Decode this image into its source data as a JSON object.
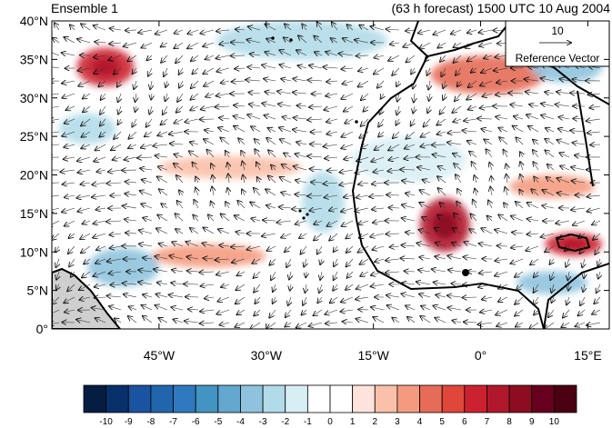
{
  "header": {
    "left_title": "Ensemble 1",
    "right_title": "(63 h forecast) 1500 UTC 10 Aug 2004"
  },
  "map": {
    "lon_range": [
      -60,
      18
    ],
    "lat_range": [
      0,
      40
    ],
    "y_ticks": [
      "0°",
      "5°N",
      "10°N",
      "15°N",
      "20°N",
      "25°N",
      "30°N",
      "35°N",
      "40°N"
    ],
    "x_ticks": [
      "45°W",
      "30°W",
      "15°W",
      "0°",
      "15°E"
    ],
    "x_tick_lons": [
      -45,
      -30,
      -15,
      0,
      15
    ],
    "reference_vector": {
      "value": "10",
      "label": "Reference Vector"
    }
  },
  "anomalies": [
    {
      "lon": -52.5,
      "lat": 34.0,
      "value": 6,
      "rx": 4,
      "ry": 2.5
    },
    {
      "lon": -5.0,
      "lat": 13.5,
      "value": 7,
      "rx": 3.5,
      "ry": 3.5
    },
    {
      "lon": 13.0,
      "lat": 11.0,
      "value": 6,
      "rx": 4,
      "ry": 1.5
    },
    {
      "lon": 1.0,
      "lat": 33.0,
      "value": 4,
      "rx": 8,
      "ry": 2.5
    },
    {
      "lon": -38.0,
      "lat": 9.5,
      "value": 3,
      "rx": 8,
      "ry": 1.5
    },
    {
      "lon": 10.0,
      "lat": 18.5,
      "value": 3,
      "rx": 6,
      "ry": 1.5
    },
    {
      "lon": -25.0,
      "lat": 37.5,
      "value": -3,
      "rx": 12,
      "ry": 2.5
    },
    {
      "lon": -22.0,
      "lat": 16.5,
      "value": -3,
      "rx": 3,
      "ry": 4
    },
    {
      "lon": -55.0,
      "lat": 26.0,
      "value": -3,
      "rx": 4,
      "ry": 2
    },
    {
      "lon": -50.0,
      "lat": 8.0,
      "value": -4,
      "rx": 5,
      "ry": 2.5
    },
    {
      "lon": 12.0,
      "lat": 34.0,
      "value": -4,
      "rx": 5,
      "ry": 2
    },
    {
      "lon": 10.0,
      "lat": 6.0,
      "value": -4,
      "rx": 5,
      "ry": 1.5
    },
    {
      "lon": -35.0,
      "lat": 21.0,
      "value": 2,
      "rx": 10,
      "ry": 1.5
    },
    {
      "lon": -10.0,
      "lat": 22.0,
      "value": -2,
      "rx": 8,
      "ry": 3
    }
  ],
  "colorbar": {
    "labels": [
      "-10",
      "-9",
      "-8",
      "-7",
      "-6",
      "-5",
      "-4",
      "-3",
      "-2",
      "-1",
      "0",
      "1",
      "2",
      "3",
      "4",
      "5",
      "6",
      "7",
      "8",
      "9",
      "10"
    ],
    "colors": [
      "#061d42",
      "#08306b",
      "#1a53a0",
      "#2166ac",
      "#2f7abf",
      "#4393c3",
      "#64a7cf",
      "#8fc3dd",
      "#b2dbe9",
      "#d8eef5",
      "#ffffff",
      "#ffffff",
      "#fde3dc",
      "#f9c0aa",
      "#f49b7f",
      "#e66b58",
      "#e0463a",
      "#cc2230",
      "#b2182b",
      "#8c0d1f",
      "#67001f",
      "#4a0010"
    ]
  }
}
